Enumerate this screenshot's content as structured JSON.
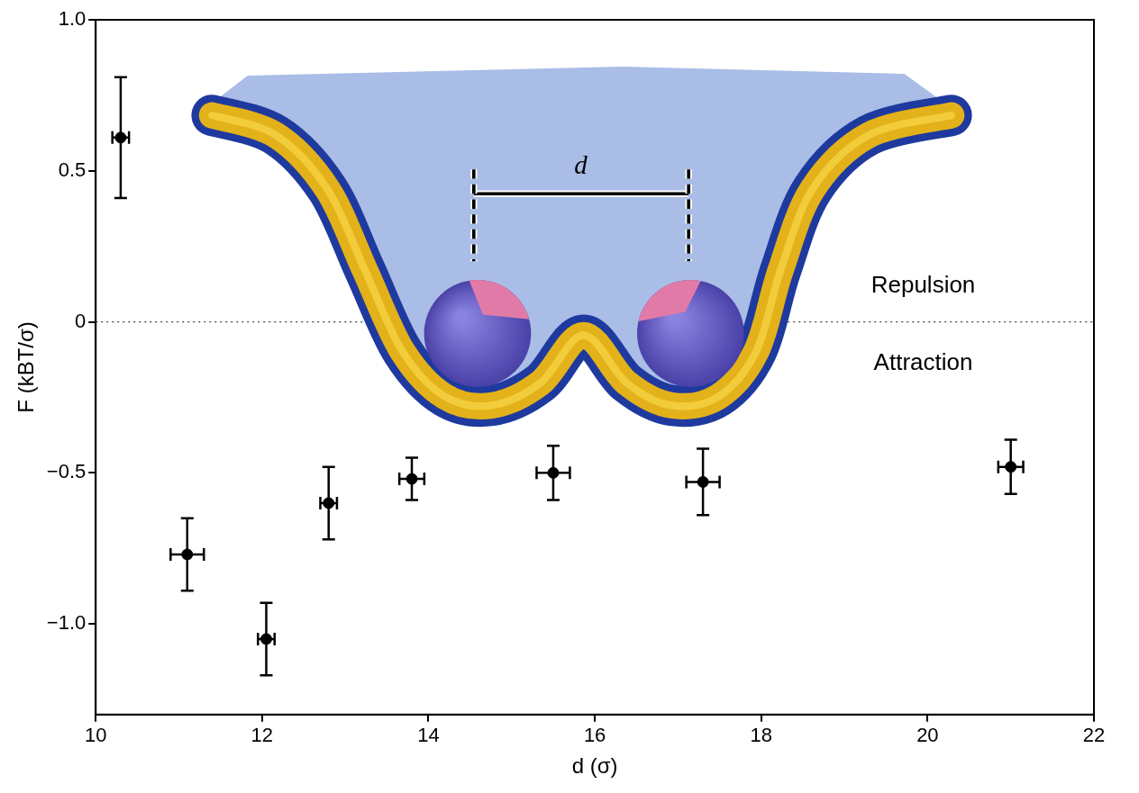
{
  "chart_data": {
    "type": "scatter",
    "x_label": "d (σ)",
    "y_label": "F (kBT/σ)",
    "x": [
      10.3,
      11.1,
      12.05,
      12.8,
      13.8,
      15.5,
      17.3,
      21.0
    ],
    "values": [
      0.61,
      -0.77,
      -1.05,
      -0.6,
      -0.52,
      -0.5,
      -0.53,
      -0.48
    ],
    "x_err": [
      0.1,
      0.2,
      0.1,
      0.1,
      0.15,
      0.2,
      0.2,
      0.15
    ],
    "y_err": [
      0.2,
      0.12,
      0.12,
      0.12,
      0.07,
      0.09,
      0.11,
      0.09
    ],
    "color": "#000000",
    "marker": "circle",
    "xlim": [
      10,
      22
    ],
    "xticks": [
      10,
      12,
      14,
      16,
      18,
      20,
      22
    ],
    "ylim": [
      -1.3,
      1.0
    ],
    "yticks": [
      {
        "value": -1,
        "label": "−1.0"
      },
      {
        "value": -0.5,
        "label": "−0.5"
      },
      0,
      0.5,
      {
        "value": 1,
        "label": "1.0"
      }
    ],
    "grid": false,
    "reference_line": {
      "y": 0,
      "line_style": "dotted"
    },
    "annotations": [
      "Repulsion",
      "Attraction"
    ],
    "inset": {
      "label": "d"
    }
  }
}
